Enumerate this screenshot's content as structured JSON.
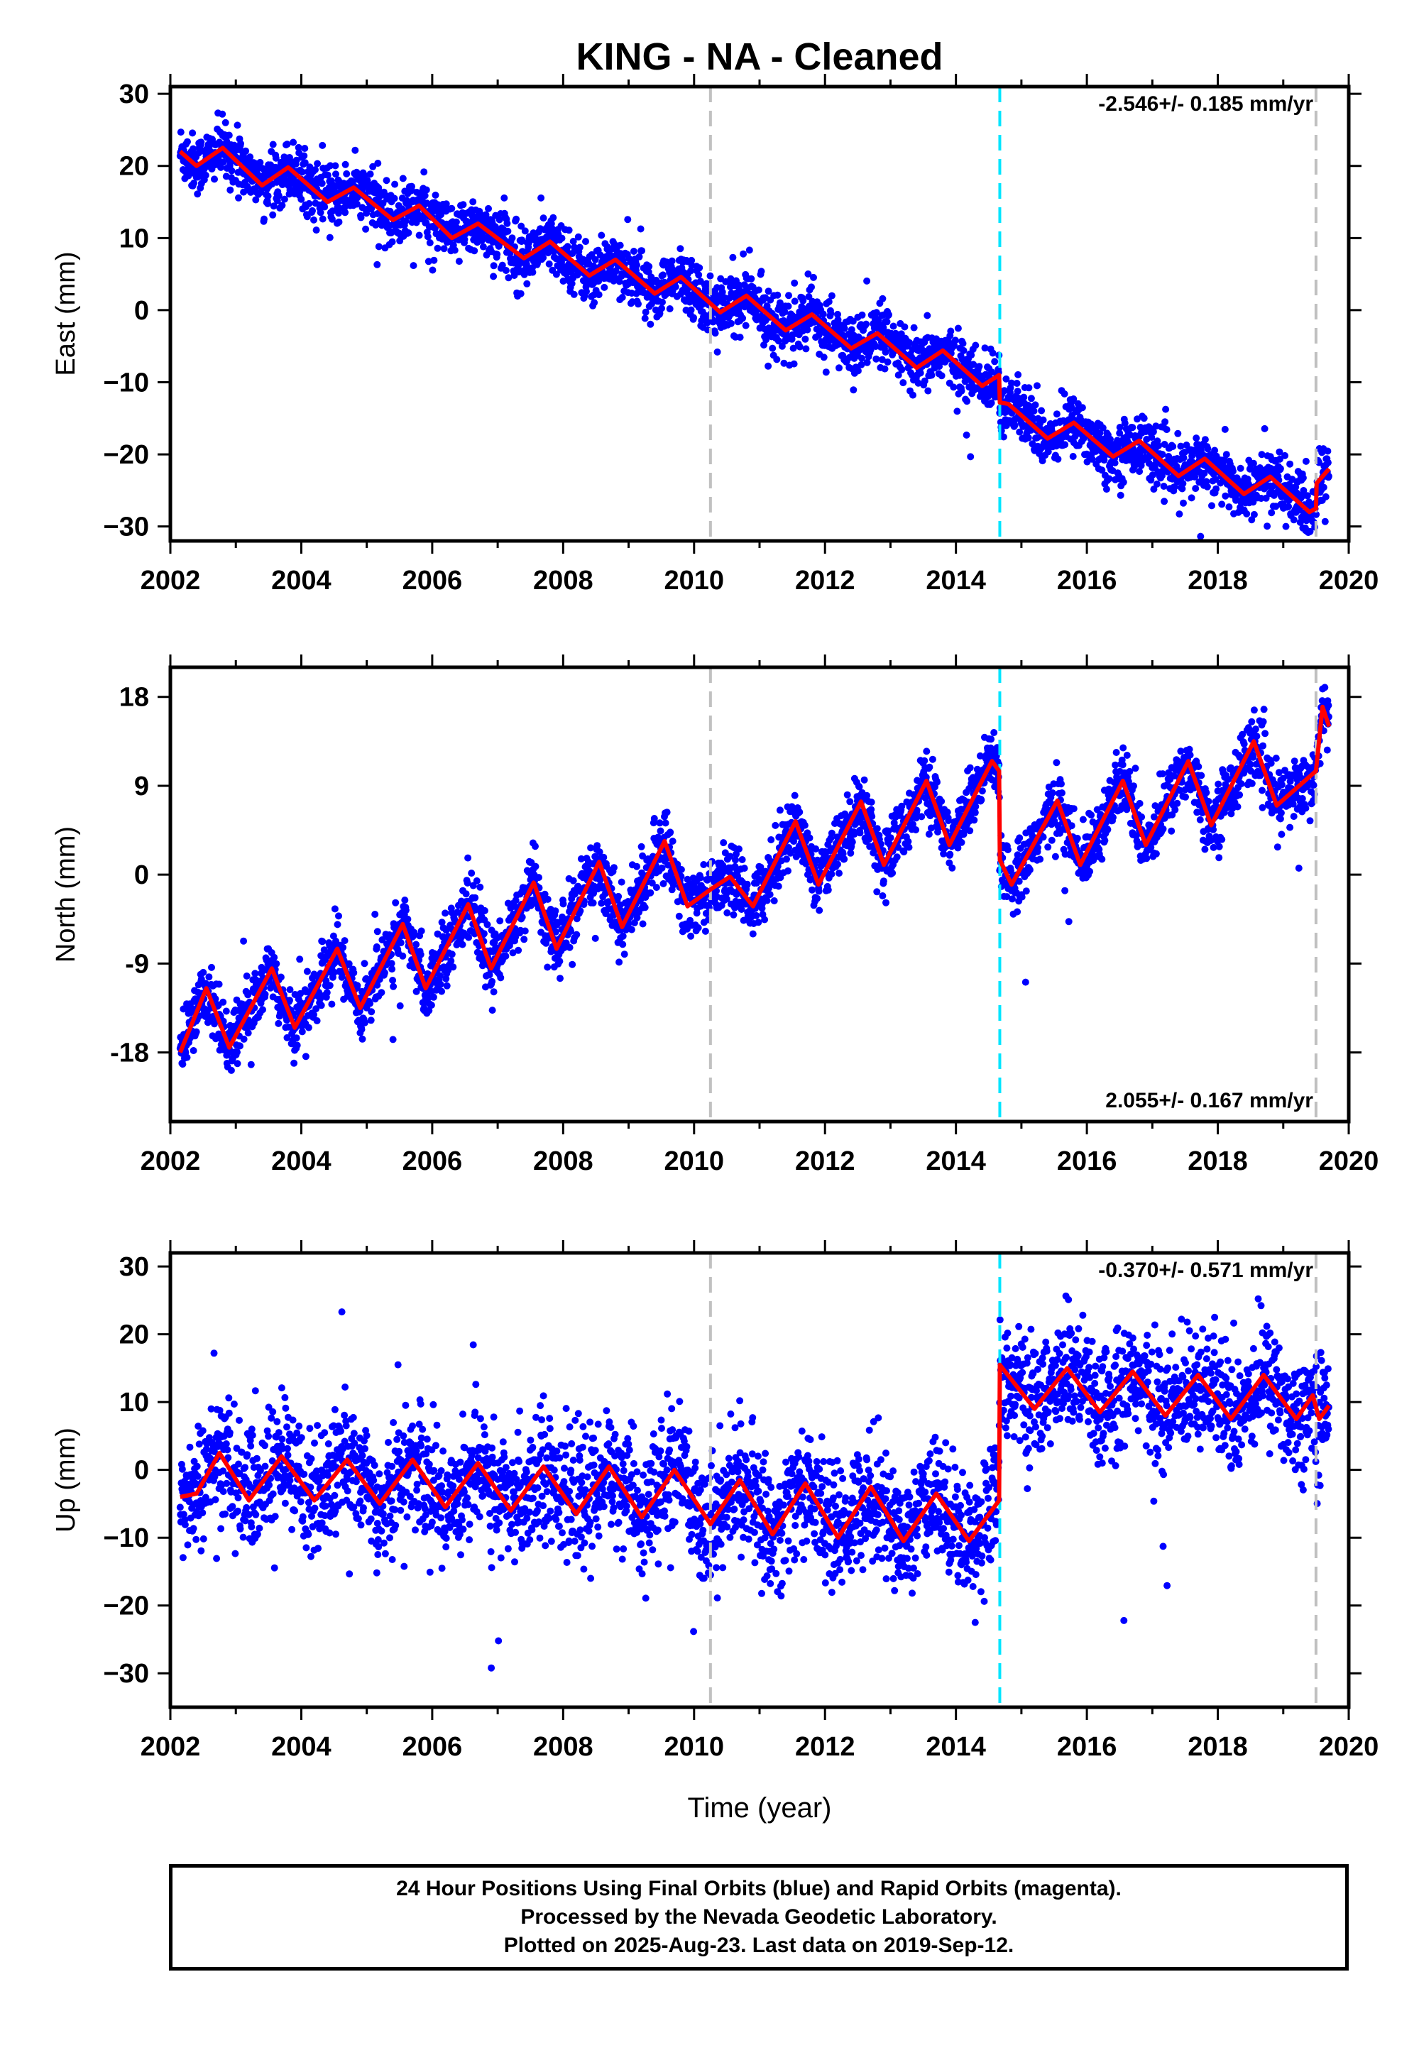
{
  "title": "KING  - NA - Cleaned",
  "footer": {
    "line1": "24 Hour Positions Using Final Orbits (blue) and Rapid Orbits (magenta).",
    "line2": "Processed by the Nevada Geodetic Laboratory.",
    "line3": "Plotted on 2025-Aug-23. Last data on 2019-Sep-12."
  },
  "colors": {
    "data": "#0000ff",
    "model": "#ff0000",
    "equipment_change": "#c0c0c0",
    "earthquake": "#00e5ff"
  },
  "chart_data": [
    {
      "type": "scatter",
      "ylabel": "East (mm)",
      "xlabel": "",
      "xlim": [
        2002,
        2020
      ],
      "ylim": [
        -32,
        31
      ],
      "xticks": [
        "2002",
        "2004",
        "2006",
        "2008",
        "2010",
        "2012",
        "2014",
        "2016",
        "2018",
        "2020"
      ],
      "yticks": [
        "30",
        "20",
        "10",
        "0",
        "−10",
        "−20",
        "−30"
      ],
      "ytick_values": [
        30,
        20,
        10,
        0,
        -10,
        -20,
        -30
      ],
      "rate_label": "-2.546+/- 0.185 mm/yr",
      "rate_position": "top-right",
      "grey_lines": [
        2010.25,
        2019.5
      ],
      "cyan_lines": [
        2014.67
      ],
      "data_start": 2002.15,
      "data_end": 2019.7,
      "model": {
        "points": [
          [
            2002.15,
            22.0
          ],
          [
            2002.4,
            20.0
          ],
          [
            2002.8,
            22.5
          ],
          [
            2003.4,
            17.3
          ],
          [
            2003.8,
            19.8
          ],
          [
            2004.4,
            15.0
          ],
          [
            2004.8,
            17.0
          ],
          [
            2005.4,
            12.5
          ],
          [
            2005.8,
            14.5
          ],
          [
            2006.3,
            10.0
          ],
          [
            2006.7,
            12.0
          ],
          [
            2007.4,
            7.2
          ],
          [
            2007.8,
            9.5
          ],
          [
            2008.4,
            4.8
          ],
          [
            2008.8,
            7.0
          ],
          [
            2009.4,
            2.3
          ],
          [
            2009.8,
            4.6
          ],
          [
            2010.4,
            -0.3
          ],
          [
            2010.8,
            2.0
          ],
          [
            2011.4,
            -2.8
          ],
          [
            2011.8,
            -0.6
          ],
          [
            2012.4,
            -5.3
          ],
          [
            2012.8,
            -3.2
          ],
          [
            2013.4,
            -8.0
          ],
          [
            2013.8,
            -5.6
          ],
          [
            2014.4,
            -10.5
          ],
          [
            2014.66,
            -9.0
          ],
          [
            2014.67,
            -12.8
          ],
          [
            2014.8,
            -13.0
          ],
          [
            2015.4,
            -17.8
          ],
          [
            2015.8,
            -15.6
          ],
          [
            2016.4,
            -20.3
          ],
          [
            2016.8,
            -18.1
          ],
          [
            2017.4,
            -23.0
          ],
          [
            2017.8,
            -20.6
          ],
          [
            2018.4,
            -25.5
          ],
          [
            2018.8,
            -23.1
          ],
          [
            2019.4,
            -28.0
          ],
          [
            2019.5,
            -27.5
          ],
          [
            2019.51,
            -24.0
          ],
          [
            2019.7,
            -22.0
          ]
        ],
        "scatter_sd": 2.0
      }
    },
    {
      "type": "scatter",
      "ylabel": "North (mm)",
      "xlabel": "",
      "xlim": [
        2002,
        2020
      ],
      "ylim": [
        -25,
        21
      ],
      "xticks": [
        "2002",
        "2004",
        "2006",
        "2008",
        "2010",
        "2012",
        "2014",
        "2016",
        "2018",
        "2020"
      ],
      "yticks": [
        "18",
        "9",
        "0",
        "-9",
        "-18"
      ],
      "ytick_values": [
        18,
        9,
        0,
        -9,
        -18
      ],
      "rate_label": "2.055+/- 0.167 mm/yr",
      "rate_position": "bottom-right",
      "grey_lines": [
        2010.25,
        2019.5
      ],
      "cyan_lines": [
        2014.67
      ],
      "data_start": 2002.15,
      "data_end": 2019.7,
      "model": {
        "points": [
          [
            2002.15,
            -18.0
          ],
          [
            2002.55,
            -11.5
          ],
          [
            2002.9,
            -17.5
          ],
          [
            2003.55,
            -9.5
          ],
          [
            2003.9,
            -15.5
          ],
          [
            2004.55,
            -7.5
          ],
          [
            2004.9,
            -13.5
          ],
          [
            2005.55,
            -5.0
          ],
          [
            2005.9,
            -11.5
          ],
          [
            2006.55,
            -3.0
          ],
          [
            2006.9,
            -9.5
          ],
          [
            2007.55,
            -0.8
          ],
          [
            2007.9,
            -7.5
          ],
          [
            2008.55,
            1.3
          ],
          [
            2008.9,
            -5.3
          ],
          [
            2009.55,
            3.4
          ],
          [
            2009.9,
            -3.2
          ],
          [
            2010.25,
            -1.5
          ],
          [
            2010.55,
            -0.2
          ],
          [
            2010.9,
            -3.2
          ],
          [
            2011.55,
            5.4
          ],
          [
            2011.9,
            -1.0
          ],
          [
            2012.55,
            7.4
          ],
          [
            2012.9,
            1.0
          ],
          [
            2013.55,
            9.5
          ],
          [
            2013.9,
            3.0
          ],
          [
            2014.55,
            11.5
          ],
          [
            2014.66,
            10.5
          ],
          [
            2014.67,
            1.5
          ],
          [
            2014.85,
            -1.0
          ],
          [
            2015.55,
            7.5
          ],
          [
            2015.9,
            1.0
          ],
          [
            2016.55,
            9.5
          ],
          [
            2016.9,
            3.0
          ],
          [
            2017.55,
            11.5
          ],
          [
            2017.9,
            5.0
          ],
          [
            2018.55,
            13.5
          ],
          [
            2018.9,
            7.0
          ],
          [
            2019.5,
            10.5
          ],
          [
            2019.6,
            17.0
          ],
          [
            2019.7,
            15.0
          ]
        ],
        "scatter_sd": 1.6
      }
    },
    {
      "type": "scatter",
      "ylabel": "Up (mm)",
      "xlabel": "Time (year)",
      "xlim": [
        2002,
        2020
      ],
      "ylim": [
        -35,
        32
      ],
      "xticks": [
        "2002",
        "2004",
        "2006",
        "2008",
        "2010",
        "2012",
        "2014",
        "2016",
        "2018",
        "2020"
      ],
      "yticks": [
        "30",
        "20",
        "10",
        "0",
        "−10",
        "−20",
        "−30"
      ],
      "ytick_values": [
        30,
        20,
        10,
        0,
        -10,
        -20,
        -30
      ],
      "rate_label": "-0.370+/- 0.571 mm/yr",
      "rate_position": "top-right",
      "grey_lines": [
        2010.25,
        2019.5
      ],
      "cyan_lines": [
        2014.67
      ],
      "data_start": 2002.15,
      "data_end": 2019.7,
      "model": {
        "points": [
          [
            2002.15,
            -4.0
          ],
          [
            2002.4,
            -3.5
          ],
          [
            2002.75,
            2.5
          ],
          [
            2003.2,
            -4.5
          ],
          [
            2003.7,
            2.0
          ],
          [
            2004.2,
            -4.5
          ],
          [
            2004.7,
            1.5
          ],
          [
            2005.2,
            -5.0
          ],
          [
            2005.7,
            1.5
          ],
          [
            2006.2,
            -5.5
          ],
          [
            2006.7,
            1.0
          ],
          [
            2007.2,
            -6.0
          ],
          [
            2007.7,
            0.5
          ],
          [
            2008.2,
            -6.5
          ],
          [
            2008.7,
            0.5
          ],
          [
            2009.2,
            -7.0
          ],
          [
            2009.7,
            0.0
          ],
          [
            2010.25,
            -8.0
          ],
          [
            2010.7,
            -1.5
          ],
          [
            2011.2,
            -9.5
          ],
          [
            2011.7,
            -2.0
          ],
          [
            2012.2,
            -10.0
          ],
          [
            2012.7,
            -2.5
          ],
          [
            2013.2,
            -10.5
          ],
          [
            2013.7,
            -3.5
          ],
          [
            2014.2,
            -10.5
          ],
          [
            2014.66,
            -4.5
          ],
          [
            2014.67,
            15.5
          ],
          [
            2015.2,
            9.0
          ],
          [
            2015.7,
            15.0
          ],
          [
            2016.2,
            8.5
          ],
          [
            2016.7,
            14.5
          ],
          [
            2017.2,
            8.0
          ],
          [
            2017.7,
            14.0
          ],
          [
            2018.2,
            7.5
          ],
          [
            2018.7,
            14.0
          ],
          [
            2019.2,
            7.5
          ],
          [
            2019.45,
            11.0
          ],
          [
            2019.55,
            7.5
          ],
          [
            2019.7,
            9.5
          ]
        ],
        "scatter_sd": 4.5
      }
    }
  ]
}
